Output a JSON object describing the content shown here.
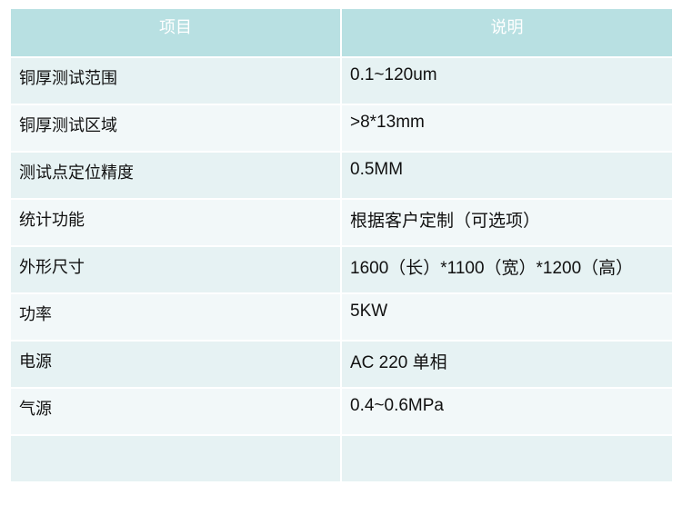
{
  "header": {
    "col1": "项目",
    "col2": "说明"
  },
  "rows": [
    {
      "item": "铜厚测试范围",
      "desc": "0.1~120um"
    },
    {
      "item": "铜厚测试区域",
      "desc": ">8*13mm"
    },
    {
      "item": "测试点定位精度",
      "desc": "0.5MM"
    },
    {
      "item": "统计功能",
      "desc": "根据客户定制（可选项）"
    },
    {
      "item": "外形尺寸",
      "desc": "1600（长）*1100（宽）*1200（高）"
    },
    {
      "item": "功率",
      "desc": "5KW"
    },
    {
      "item": "电源",
      "desc": "AC 220 单相"
    },
    {
      "item": "气源",
      "desc": "0.4~0.6MPa"
    },
    {
      "item": "",
      "desc": ""
    }
  ]
}
